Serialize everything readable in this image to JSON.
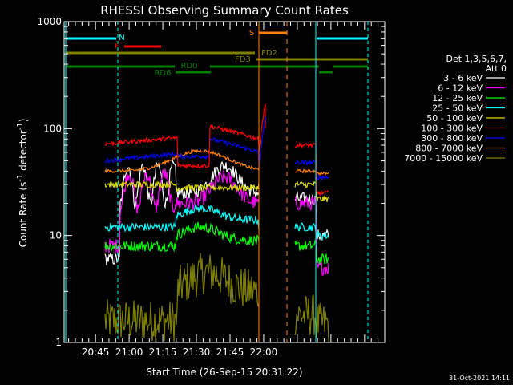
{
  "chart_data": {
    "type": "line",
    "title": "RHESSI Observing Summary Count Rates",
    "xlabel": "Start Time (26-Sep-15 20:31:22)",
    "ylabel_main": "Count Rate (s",
    "ylabel_sup1": "-1",
    "ylabel_mid": " detector",
    "ylabel_sup2": "-1",
    "ylabel_end": ")",
    "yscale": "log",
    "ylim": [
      1,
      1000
    ],
    "xlim_min": [
      0,
      143
    ],
    "x_ticks": [
      {
        "min": 14,
        "label": "20:45"
      },
      {
        "min": 29,
        "label": "21:00"
      },
      {
        "min": 44,
        "label": "21:15"
      },
      {
        "min": 59,
        "label": "21:30"
      },
      {
        "min": 74,
        "label": "21:45"
      },
      {
        "min": 89,
        "label": "22:00"
      }
    ],
    "y_tick_labels": [
      {
        "value": 1,
        "label": "1"
      },
      {
        "value": 10,
        "label": "10"
      },
      {
        "value": 100,
        "label": "100"
      },
      {
        "value": 1000,
        "label": "1000"
      }
    ],
    "legend_header": [
      "Det 1,3,5,6,7,",
      "Att 0"
    ],
    "series": [
      {
        "name": "3 - 6 keV",
        "color": "#ffffff"
      },
      {
        "name": "6 - 12 keV",
        "color": "#ff00ff"
      },
      {
        "name": "12 - 25 keV",
        "color": "#00ff00"
      },
      {
        "name": "25 - 50 keV",
        "color": "#00ffff"
      },
      {
        "name": "50 - 100 keV",
        "color": "#dddd00"
      },
      {
        "name": "100 - 300 keV",
        "color": "#ff0000"
      },
      {
        "name": "300 - 800 keV",
        "color": "#0000ff"
      },
      {
        "name": "800 - 7000 keV",
        "color": "#ff8000"
      },
      {
        "name": "7000 - 15000 keV",
        "color": "#808000"
      }
    ],
    "flags": [
      {
        "label": "N",
        "color": "#00ffff"
      },
      {
        "label": "F",
        "color": "#ff0000"
      },
      {
        "label": "S",
        "color": "#ff8000"
      },
      {
        "label": "FD2",
        "color": "#808000"
      },
      {
        "label": "FD3",
        "color": "#808000"
      },
      {
        "label": "RD0",
        "color": "#008000"
      },
      {
        "label": "RD6",
        "color": "#008000"
      }
    ],
    "timestamp": "31-Oct-2021 14:11"
  }
}
